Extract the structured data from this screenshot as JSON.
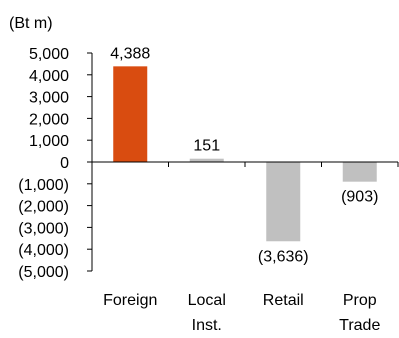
{
  "chart_data": {
    "type": "bar",
    "unit_label": "(Bt m)",
    "categories": [
      {
        "lines": [
          "Foreign"
        ]
      },
      {
        "lines": [
          "Local",
          "Inst."
        ]
      },
      {
        "lines": [
          "Retail"
        ]
      },
      {
        "lines": [
          "Prop",
          "Trade"
        ]
      }
    ],
    "values": [
      4388,
      151,
      -3636,
      -903
    ],
    "data_labels": [
      "4,388",
      "151",
      "(3,636)",
      "(903)"
    ],
    "colors": [
      "#D94C10",
      "#C0C0C0",
      "#C0C0C0",
      "#C0C0C0"
    ],
    "ylim": [
      -5000,
      5000
    ],
    "yticks": [
      5000,
      4000,
      3000,
      2000,
      1000,
      0,
      -1000,
      -2000,
      -3000,
      -4000,
      -5000
    ],
    "ytick_labels": [
      "5,000",
      "4,000",
      "3,000",
      "2,000",
      "1,000",
      "0",
      "(1,000)",
      "(2,000)",
      "(3,000)",
      "(4,000)",
      "(5,000)"
    ],
    "grid": false,
    "legend": "none"
  }
}
